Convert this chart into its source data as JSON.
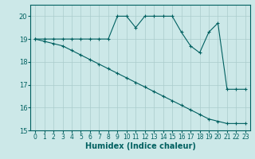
{
  "title": "",
  "xlabel": "Humidex (Indice chaleur)",
  "x_values": [
    0,
    1,
    2,
    3,
    4,
    5,
    6,
    7,
    8,
    9,
    10,
    11,
    12,
    13,
    14,
    15,
    16,
    17,
    18,
    19,
    20,
    21,
    22,
    23
  ],
  "series1": [
    19,
    19,
    19,
    19,
    19,
    19,
    19,
    19,
    19,
    20,
    20,
    19.5,
    20,
    20,
    20,
    20,
    19.3,
    18.7,
    18.4,
    19.3,
    19.7,
    16.8,
    16.8,
    16.8
  ],
  "series2": [
    19,
    18.9,
    18.8,
    18.7,
    18.5,
    18.3,
    18.1,
    17.9,
    17.7,
    17.5,
    17.3,
    17.1,
    16.9,
    16.7,
    16.5,
    16.3,
    16.1,
    15.9,
    15.7,
    15.5,
    15.4,
    15.3,
    15.3,
    15.3
  ],
  "line_color": "#006060",
  "bg_color": "#cce8e8",
  "grid_color": "#aacccc",
  "ylim": [
    15,
    20.5
  ],
  "xlim": [
    -0.5,
    23.5
  ],
  "yticks": [
    15,
    16,
    17,
    18,
    19,
    20
  ],
  "xticks": [
    0,
    1,
    2,
    3,
    4,
    5,
    6,
    7,
    8,
    9,
    10,
    11,
    12,
    13,
    14,
    15,
    16,
    17,
    18,
    19,
    20,
    21,
    22,
    23
  ]
}
